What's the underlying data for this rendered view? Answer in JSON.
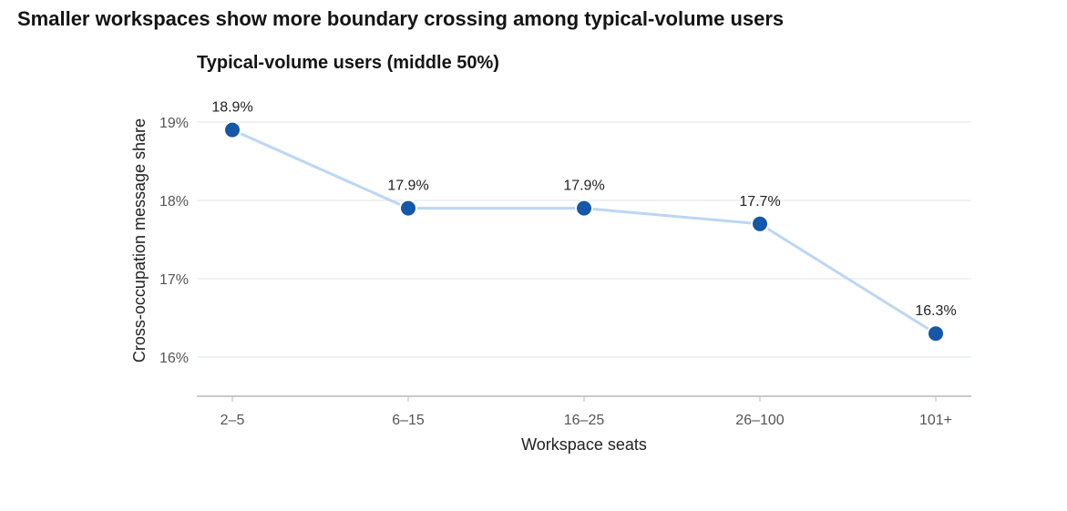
{
  "title": "Smaller workspaces show more boundary crossing among typical-volume users",
  "colors": {
    "line": "#bcd6f4",
    "marker": "#1557a8",
    "gridline": "#dde6ee",
    "axis": "#b8b8b8"
  },
  "chart_data": {
    "type": "line",
    "title": "Typical-volume users (middle 50%)",
    "xlabel": "Workspace seats",
    "ylabel": "Cross-occupation message share",
    "categories": [
      "2–5",
      "6–15",
      "16–25",
      "26–100",
      "101+"
    ],
    "values": [
      18.9,
      17.9,
      17.9,
      17.7,
      16.3
    ],
    "data_labels": [
      "18.9%",
      "17.9%",
      "17.9%",
      "17.7%",
      "16.3%"
    ],
    "y_ticks": [
      16,
      17,
      18,
      19
    ],
    "y_tick_labels": [
      "16%",
      "17%",
      "18%",
      "19%"
    ],
    "ylim": [
      15.5,
      19.1
    ],
    "grid": true,
    "legend": "none"
  }
}
